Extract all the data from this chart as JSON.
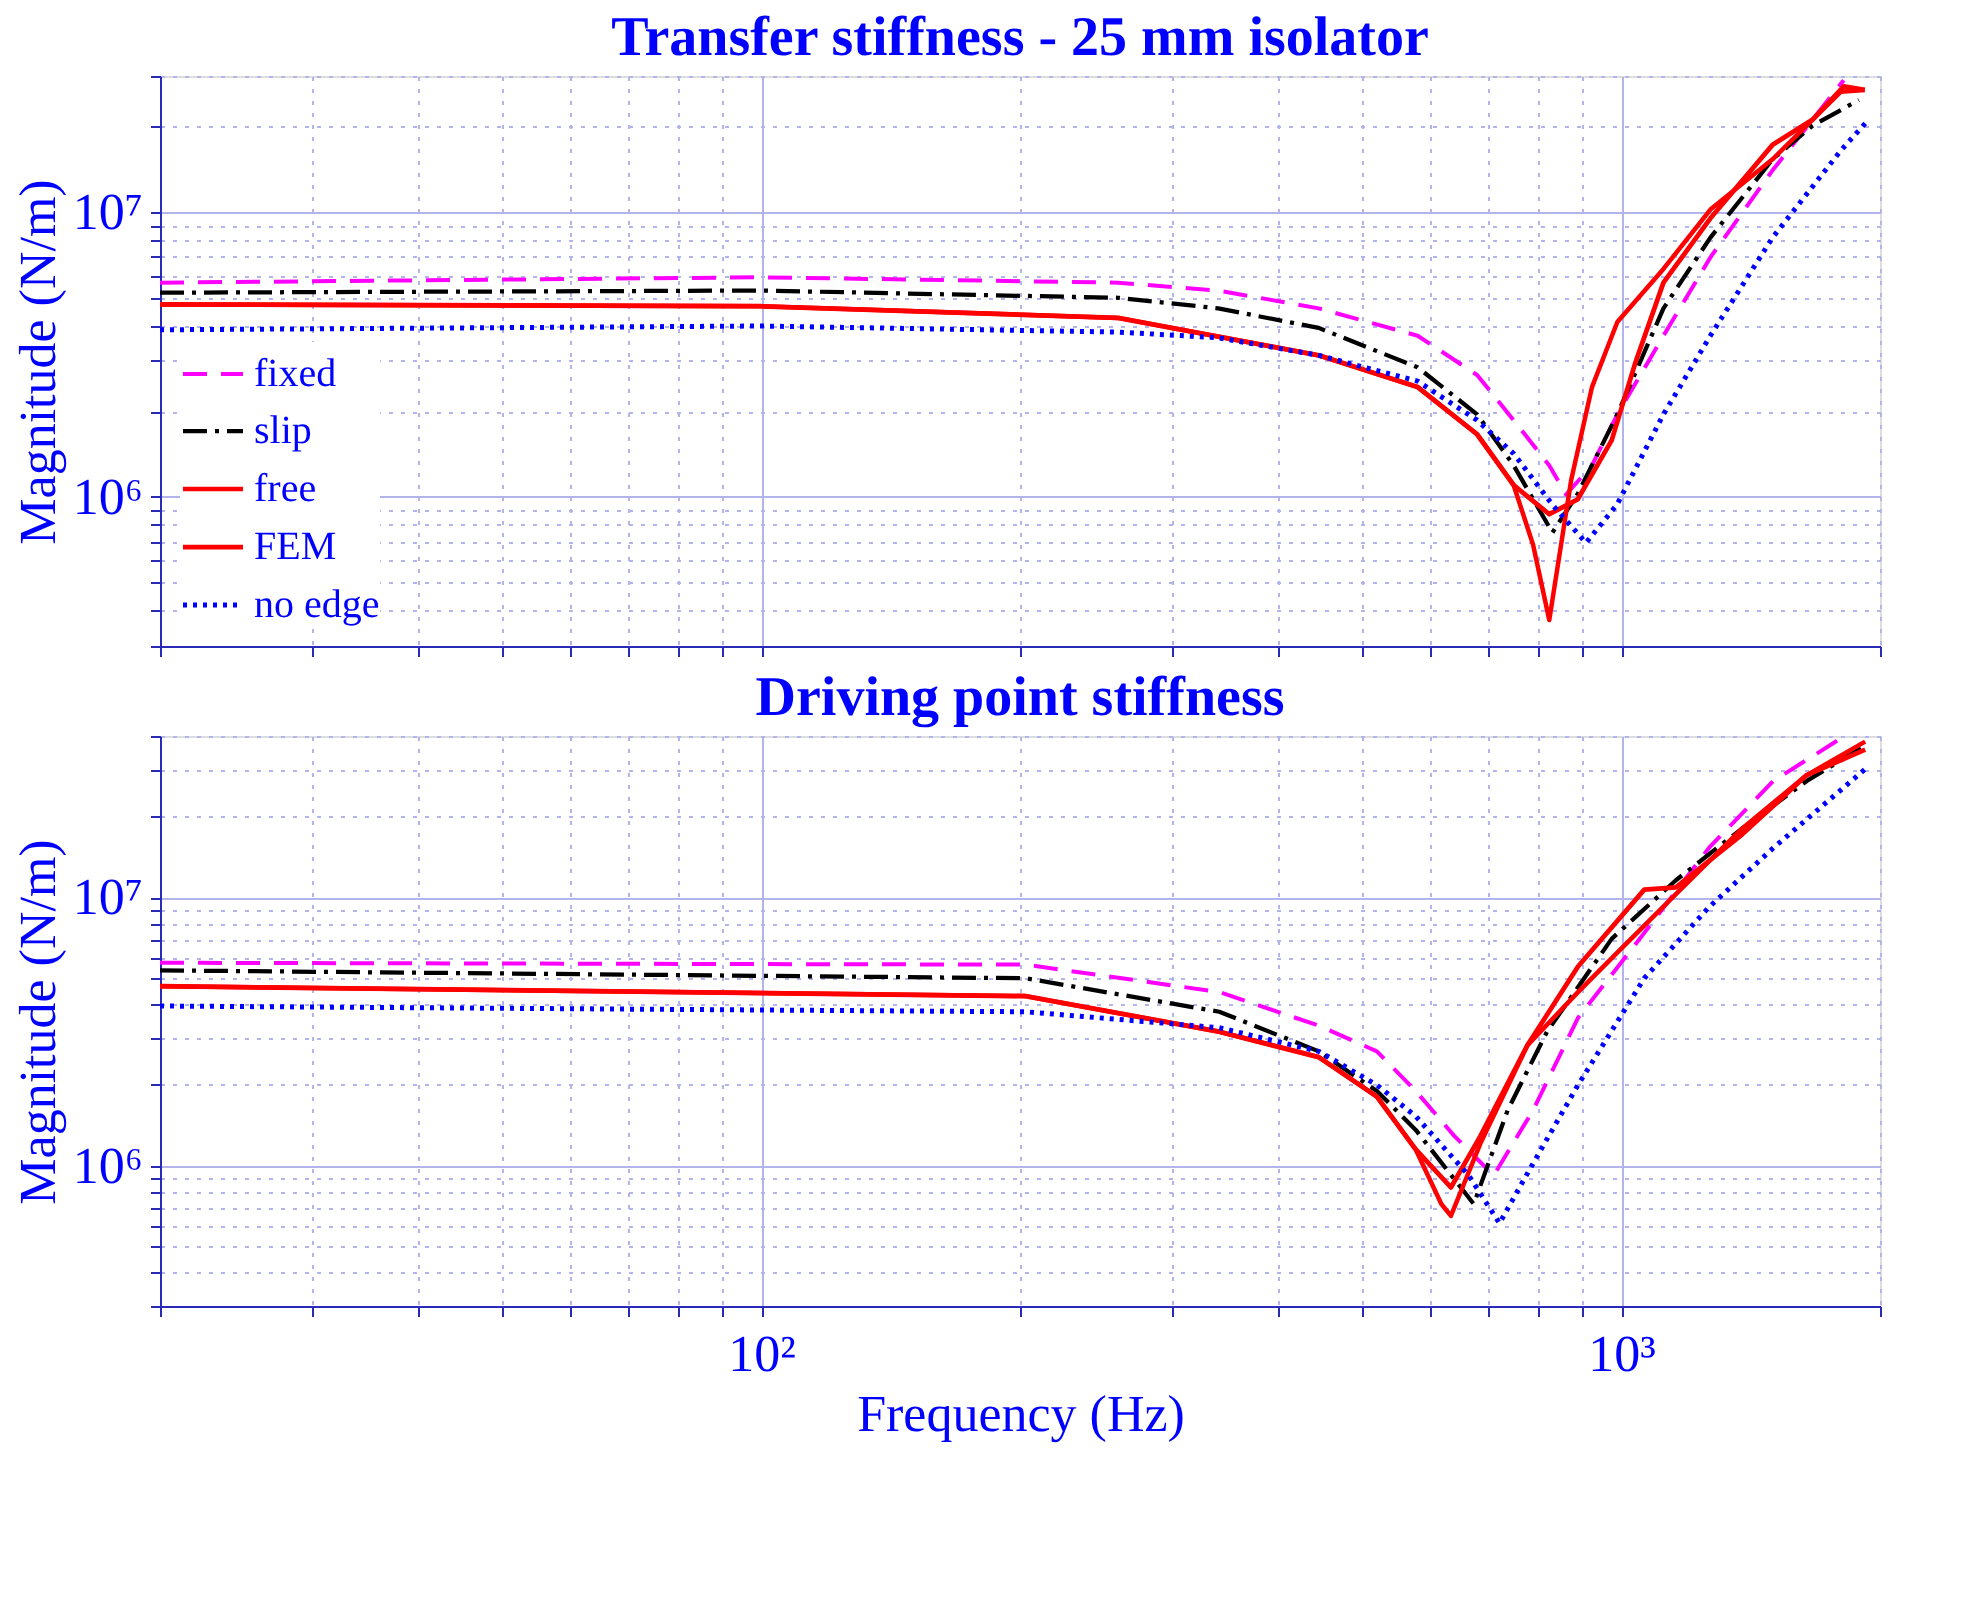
{
  "chart_data": [
    {
      "type": "line",
      "title": "Transfer stiffness - 25 mm isolator",
      "ylabel": "Magnitude (N/m)",
      "log": "xy",
      "grid": true,
      "legend": "bottom left",
      "tick_labels": "y",
      "xlim": [
        20,
        2000
      ],
      "ylim": [
        300000,
        30000000
      ],
      "xticks": [
        {
          "value": 20,
          "label": null
        },
        {
          "value": 30,
          "label": null
        },
        {
          "value": 40,
          "label": null
        },
        {
          "value": 50,
          "label": null
        },
        {
          "value": 60,
          "label": null
        },
        {
          "value": 70,
          "label": null
        },
        {
          "value": 80,
          "label": null
        },
        {
          "value": 90,
          "label": null
        },
        {
          "value": 100,
          "label": null
        },
        {
          "value": 200,
          "label": null
        },
        {
          "value": 300,
          "label": null
        },
        {
          "value": 400,
          "label": null
        },
        {
          "value": 500,
          "label": null
        },
        {
          "value": 600,
          "label": null
        },
        {
          "value": 700,
          "label": null
        },
        {
          "value": 800,
          "label": null
        },
        {
          "value": 900,
          "label": null
        },
        {
          "value": 1000,
          "label": null
        },
        {
          "value": 2000,
          "label": null
        }
      ],
      "yticks": [
        {
          "value": 300000,
          "label": null
        },
        {
          "value": 400000,
          "label": null
        },
        {
          "value": 500000,
          "label": null
        },
        {
          "value": 600000,
          "label": null
        },
        {
          "value": 700000,
          "label": null
        },
        {
          "value": 800000,
          "label": null
        },
        {
          "value": 900000,
          "label": null
        },
        {
          "value": 1000000,
          "label": "10⁶"
        },
        {
          "value": 2000000,
          "label": null
        },
        {
          "value": 3000000,
          "label": null
        },
        {
          "value": 4000000,
          "label": null
        },
        {
          "value": 5000000,
          "label": null
        },
        {
          "value": 6000000,
          "label": null
        },
        {
          "value": 7000000,
          "label": null
        },
        {
          "value": 8000000,
          "label": null
        },
        {
          "value": 9000000,
          "label": null
        },
        {
          "value": 10000000,
          "label": "10⁷"
        },
        {
          "value": 20000000,
          "label": null
        },
        {
          "value": 30000000,
          "label": null
        }
      ],
      "series": [
        {
          "name": "fixed",
          "color": "#ff00ff",
          "line_style": "dashed",
          "x": [
            20,
            100,
            260,
            340,
            445,
            580,
            680,
            750,
            825,
            863,
            925,
            990,
            1120,
            1270,
            1500,
            1670,
            1815
          ],
          "values": [
            5650000,
            5900000,
            5650000,
            5300000,
            4590000,
            3680000,
            2680000,
            1860000,
            1290000,
            1020000,
            1290000,
            1950000,
            3680000,
            6930000,
            14000000,
            21100000,
            29000000
          ]
        },
        {
          "name": "slip",
          "color": "#000000",
          "line_style": "dashdot",
          "x": [
            20,
            100,
            260,
            340,
            445,
            580,
            680,
            750,
            832,
            891,
            990,
            1120,
            1270,
            1500,
            1670,
            1890
          ],
          "values": [
            5210000,
            5300000,
            5000000,
            4590000,
            3920000,
            2850000,
            1950000,
            1290000,
            750000,
            1030000,
            1950000,
            4590000,
            8130000,
            15300000,
            20100000,
            24700000
          ]
        },
        {
          "name": "free",
          "color": "#ff0000",
          "line_style": "solid",
          "x": [
            20,
            100,
            260,
            445,
            580,
            680,
            750,
            790,
            825,
            875,
            925,
            990,
            1120,
            1270,
            1500,
            1670,
            1800,
            1920
          ],
          "values": [
            4740000,
            4670000,
            4250000,
            3140000,
            2430000,
            1660000,
            1100000,
            680000,
            370000,
            1150000,
            2430000,
            4110000,
            6310000,
            10200000,
            15300000,
            21100000,
            26400000,
            26800000
          ]
        },
        {
          "name": "FEM",
          "color": "#ff0000",
          "line_style": "solid",
          "x": [
            20,
            100,
            260,
            445,
            580,
            680,
            750,
            825,
            890,
            975,
            1040,
            1120,
            1270,
            1500,
            1670,
            1815,
            1920
          ],
          "values": [
            4740000,
            4670000,
            4250000,
            3140000,
            2430000,
            1660000,
            1100000,
            870000,
            980000,
            1580000,
            2990000,
            5650000,
            9500000,
            17200000,
            21100000,
            27600000,
            26800000
          ]
        },
        {
          "name": "no edge",
          "color": "#0000ff",
          "line_style": "dotted",
          "x": [
            20,
            100,
            260,
            340,
            445,
            580,
            680,
            750,
            832,
            910,
            989,
            1120,
            1270,
            1500,
            1800,
            1940
          ],
          "values": [
            3860000,
            3980000,
            3790000,
            3620000,
            3140000,
            2550000,
            1860000,
            1420000,
            940000,
            690000,
            940000,
            1950000,
            3680000,
            8130000,
            16400000,
            21100000
          ]
        }
      ]
    },
    {
      "type": "line",
      "title": "Driving point stiffness",
      "xlabel": "Frequency (Hz)",
      "ylabel": "Magnitude (N/m)",
      "log": "xy",
      "grid": true,
      "legend": false,
      "xlim": [
        20,
        2000
      ],
      "ylim": [
        300000,
        40000000
      ],
      "xticks": [
        {
          "value": 20,
          "label": null
        },
        {
          "value": 30,
          "label": null
        },
        {
          "value": 40,
          "label": null
        },
        {
          "value": 50,
          "label": null
        },
        {
          "value": 60,
          "label": null
        },
        {
          "value": 70,
          "label": null
        },
        {
          "value": 80,
          "label": null
        },
        {
          "value": 90,
          "label": null
        },
        {
          "value": 100,
          "label": "10²"
        },
        {
          "value": 200,
          "label": null
        },
        {
          "value": 300,
          "label": null
        },
        {
          "value": 400,
          "label": null
        },
        {
          "value": 500,
          "label": null
        },
        {
          "value": 600,
          "label": null
        },
        {
          "value": 700,
          "label": null
        },
        {
          "value": 800,
          "label": null
        },
        {
          "value": 900,
          "label": null
        },
        {
          "value": 1000,
          "label": "10³"
        },
        {
          "value": 2000,
          "label": null
        }
      ],
      "yticks": [
        {
          "value": 300000,
          "label": null
        },
        {
          "value": 400000,
          "label": null
        },
        {
          "value": 500000,
          "label": null
        },
        {
          "value": 600000,
          "label": null
        },
        {
          "value": 700000,
          "label": null
        },
        {
          "value": 800000,
          "label": null
        },
        {
          "value": 900000,
          "label": null
        },
        {
          "value": 1000000,
          "label": "10⁶"
        },
        {
          "value": 2000000,
          "label": null
        },
        {
          "value": 3000000,
          "label": null
        },
        {
          "value": 4000000,
          "label": null
        },
        {
          "value": 5000000,
          "label": null
        },
        {
          "value": 6000000,
          "label": null
        },
        {
          "value": 7000000,
          "label": null
        },
        {
          "value": 8000000,
          "label": null
        },
        {
          "value": 9000000,
          "label": null
        },
        {
          "value": 10000000,
          "label": "10⁷"
        },
        {
          "value": 20000000,
          "label": null
        },
        {
          "value": 30000000,
          "label": null
        },
        {
          "value": 40000000,
          "label": null
        }
      ],
      "series": [
        {
          "color": "#ff00ff",
          "line_style": "dashed",
          "x": [
            20,
            203,
            341,
            445,
            520,
            577,
            640,
            711,
            790,
            891,
            1064,
            1265,
            1503,
            1797
          ],
          "values": [
            5710000,
            5620000,
            4440000,
            3330000,
            2670000,
            1900000,
            1290000,
            920000,
            1610000,
            3560000,
            7380000,
            15300000,
            27200000,
            39000000
          ]
        },
        {
          "color": "#000000",
          "line_style": "dashdot",
          "x": [
            20,
            203,
            341,
            445,
            520,
            577,
            674,
            738,
            820,
            975,
            1158,
            1383,
            1644,
            1922
          ],
          "values": [
            5350000,
            5000000,
            3750000,
            2670000,
            1900000,
            1360000,
            720000,
            1610000,
            3160000,
            7010000,
            11600000,
            18100000,
            27200000,
            36800000
          ]
        },
        {
          "color": "#ff0000",
          "line_style": "solid",
          "x": [
            20,
            203,
            341,
            445,
            520,
            577,
            618,
            634,
            686,
            778,
            891,
            989,
            1158,
            1383,
            1644,
            1922
          ],
          "values": [
            4670000,
            4290000,
            3160000,
            2540000,
            1810000,
            1150000,
            720000,
            650000,
            1210000,
            2810000,
            4440000,
            6220000,
            10300000,
            18100000,
            28600000,
            38100000
          ]
        },
        {
          "color": "#ff0000",
          "line_style": "solid",
          "x": [
            20,
            203,
            341,
            445,
            520,
            577,
            634,
            686,
            778,
            891,
            1064,
            1158,
            1383,
            1644,
            1922
          ],
          "values": [
            4670000,
            4290000,
            3160000,
            2540000,
            1810000,
            1150000,
            830000,
            1290000,
            2810000,
            5530000,
            10700000,
            10900000,
            17200000,
            28600000,
            35600000
          ]
        },
        {
          "color": "#0000ff",
          "line_style": "dotted",
          "x": [
            20,
            203,
            341,
            445,
            520,
            577,
            665,
            722,
            790,
            891,
            1064,
            1265,
            1503,
            1922
          ],
          "values": [
            3940000,
            3750000,
            3270000,
            2670000,
            2000000,
            1530000,
            920000,
            610000,
            1020000,
            2000000,
            5000000,
            9200000,
            15300000,
            30100000
          ]
        }
      ]
    }
  ]
}
